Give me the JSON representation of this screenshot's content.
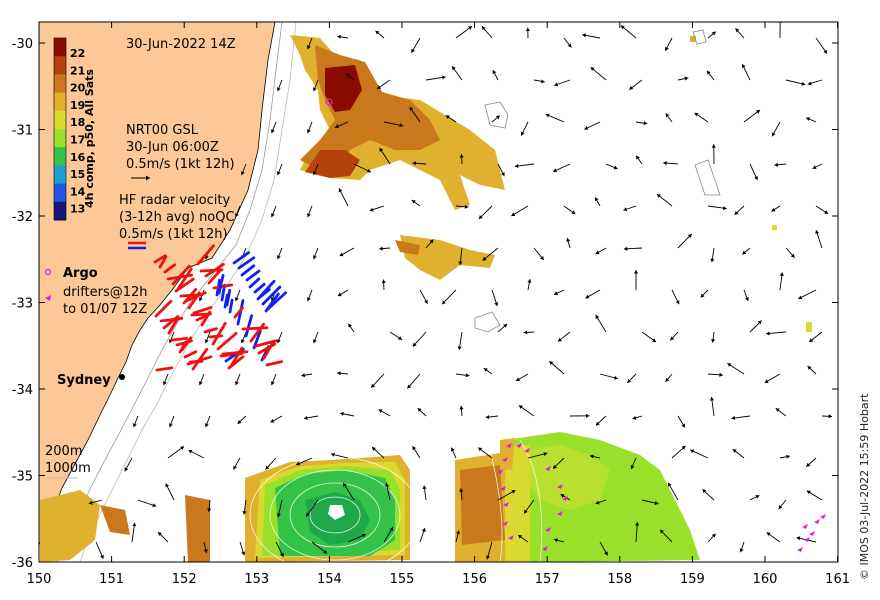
{
  "title": "30-Jun-2022 14Z",
  "colorbar": {
    "label": "4h comp, p50, All Sats",
    "ticks": [
      "22",
      "21",
      "20",
      "19",
      "18",
      "17",
      "16",
      "15",
      "14",
      "13"
    ],
    "colors": [
      "#8a0a00",
      "#b5410b",
      "#c9781c",
      "#e0b12e",
      "#d9d930",
      "#99e02a",
      "#35c24a",
      "#1e9fd0",
      "#1f55e0",
      "#16157a"
    ]
  },
  "nrt_label": "NRT00 GSL",
  "nrt_time": "30-Jun 06:00Z",
  "nrt_scale": "0.5m/s (1kt 12h)",
  "hf_title": "HF radar velocity",
  "hf_sub": "(3-12h avg) noQC",
  "hf_scale": "0.5m/s (1kt 12h)",
  "argo_label": "Argo",
  "drifters_label": "drifters@12h",
  "drifters_to": "to 01/07 12Z",
  "city": "Sydney",
  "iso_200": "200m",
  "iso_1000": "1000m",
  "credit": "© IMOS 03-Jul-2022 15:59 Hobart",
  "x_ticks": [
    "150",
    "151",
    "152",
    "153",
    "154",
    "155",
    "156",
    "157",
    "158",
    "159",
    "160",
    "161"
  ],
  "y_ticks": [
    "-30",
    "-31",
    "-32",
    "-33",
    "-34",
    "-35",
    "-36"
  ],
  "colors": {
    "land": "#fcc996",
    "hf_red": "#ee1111",
    "hf_blue": "#1122ee",
    "argo": "#dd22dd",
    "vector": "#000000"
  }
}
